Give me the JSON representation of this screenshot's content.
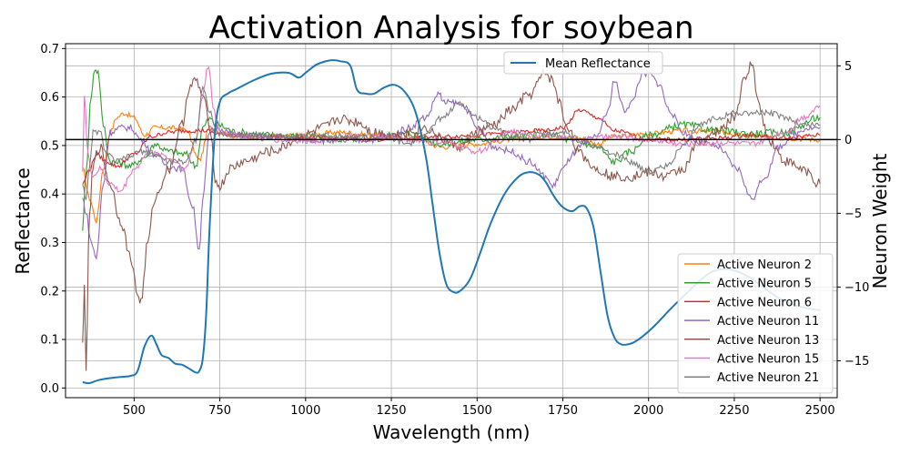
{
  "chart_data": {
    "type": "line",
    "title": "Activation Analysis for soybean",
    "xlabel": "Wavelength (nm)",
    "ylabel": "Reflectance",
    "y2label": "Neuron Weight",
    "xlim": [
      300,
      2550
    ],
    "ylim": [
      -0.02,
      0.71
    ],
    "y2lim": [
      -17.5,
      6.5
    ],
    "xticks": [
      500,
      750,
      1000,
      1250,
      1500,
      1750,
      2000,
      2250,
      2500
    ],
    "yticks": [
      0.0,
      0.1,
      0.2,
      0.3,
      0.4,
      0.5,
      0.6,
      0.7
    ],
    "y2ticks": [
      5,
      0,
      -5,
      -10,
      -15
    ],
    "grid": true,
    "zero_line_y2": 0,
    "reflectance_series": {
      "name": "Mean Reflectance",
      "color": "#1f77b4",
      "x": [
        350,
        370,
        400,
        450,
        490,
        510,
        530,
        550,
        565,
        580,
        600,
        620,
        640,
        660,
        680,
        690,
        700,
        710,
        720,
        735,
        750,
        775,
        800,
        850,
        900,
        950,
        980,
        1000,
        1030,
        1060,
        1080,
        1100,
        1130,
        1150,
        1175,
        1200,
        1230,
        1260,
        1290,
        1320,
        1350,
        1370,
        1390,
        1410,
        1430,
        1450,
        1480,
        1510,
        1540,
        1580,
        1620,
        1650,
        1680,
        1700,
        1720,
        1740,
        1760,
        1780,
        1800,
        1820,
        1840,
        1860,
        1880,
        1900,
        1920,
        1950,
        1980,
        2020,
        2060,
        2100,
        2140,
        2180,
        2220,
        2260,
        2300,
        2340,
        2380,
        2420,
        2460,
        2500
      ],
      "values": [
        0.012,
        0.01,
        0.017,
        0.022,
        0.025,
        0.035,
        0.085,
        0.108,
        0.09,
        0.068,
        0.062,
        0.05,
        0.048,
        0.04,
        0.032,
        0.035,
        0.06,
        0.15,
        0.33,
        0.52,
        0.59,
        0.608,
        0.617,
        0.635,
        0.648,
        0.65,
        0.64,
        0.65,
        0.666,
        0.674,
        0.676,
        0.674,
        0.665,
        0.615,
        0.607,
        0.607,
        0.62,
        0.625,
        0.61,
        0.57,
        0.48,
        0.38,
        0.28,
        0.215,
        0.198,
        0.2,
        0.225,
        0.28,
        0.34,
        0.4,
        0.435,
        0.445,
        0.44,
        0.425,
        0.4,
        0.38,
        0.368,
        0.365,
        0.375,
        0.37,
        0.33,
        0.24,
        0.15,
        0.105,
        0.09,
        0.092,
        0.105,
        0.13,
        0.16,
        0.188,
        0.215,
        0.238,
        0.245,
        0.24,
        0.225,
        0.205,
        0.185,
        0.172,
        0.165,
        0.16
      ]
    },
    "neuron_series": [
      {
        "name": "Active Neuron 2",
        "color": "#ff7f0e",
        "x": [
          350,
          370,
          390,
          410,
          430,
          450,
          470,
          500,
          530,
          560,
          600,
          650,
          690,
          720,
          750,
          800,
          900,
          1000,
          1100,
          1200,
          1300,
          1400,
          1500,
          1600,
          1700,
          1800,
          1850,
          1900,
          2000,
          2100,
          2200,
          2300,
          2400,
          2500
        ],
        "values": [
          -2,
          -4,
          -5.5,
          -2,
          0.5,
          1.5,
          1.8,
          1.5,
          0.3,
          0.8,
          0.8,
          0.7,
          -1.4,
          0.8,
          0.5,
          0.2,
          0.2,
          0.3,
          0.5,
          0.3,
          0.2,
          -0.5,
          -0.3,
          0.0,
          0.2,
          0.1,
          -0.3,
          0.2,
          0.4,
          0.6,
          0.5,
          0.2,
          0.1,
          0.0
        ]
      },
      {
        "name": "Active Neuron 5",
        "color": "#2ca02c",
        "x": [
          350,
          360,
          375,
          385,
          395,
          410,
          430,
          460,
          490,
          530,
          560,
          600,
          650,
          680,
          700,
          720,
          740,
          800,
          900,
          1000,
          1100,
          1200,
          1300,
          1400,
          1500,
          1600,
          1700,
          1800,
          1850,
          1900,
          1950,
          2000,
          2100,
          2200,
          2300,
          2400,
          2500
        ],
        "values": [
          -6,
          -2,
          3,
          4.8,
          4.6,
          1,
          -1.5,
          -1.6,
          -1.8,
          -1.2,
          -0.3,
          -0.8,
          -1.0,
          -1.8,
          0.8,
          1.4,
          1.0,
          0.5,
          0.3,
          0.2,
          0.0,
          0.2,
          0.4,
          -0.3,
          0.0,
          0.2,
          0.4,
          -0.2,
          -0.5,
          -1.5,
          -0.8,
          0.3,
          1.0,
          0.6,
          0.4,
          0.5,
          1.5
        ]
      },
      {
        "name": "Active Neuron 6",
        "color": "#d62728",
        "x": [
          350,
          370,
          390,
          420,
          450,
          500,
          550,
          600,
          650,
          700,
          750,
          800,
          900,
          1000,
          1100,
          1200,
          1300,
          1400,
          1500,
          1600,
          1700,
          1750,
          1800,
          1850,
          1900,
          2000,
          2100,
          2200,
          2300,
          2400,
          2500
        ],
        "values": [
          -3,
          -2,
          -1,
          -1.5,
          -1.8,
          -1,
          0.2,
          0.5,
          0.6,
          0.6,
          0.4,
          0.3,
          0.2,
          0.1,
          0.1,
          0.0,
          0.1,
          0.2,
          0.3,
          0.5,
          0.6,
          0.8,
          2.0,
          1.5,
          0.6,
          0.0,
          0.0,
          0.1,
          0.3,
          0.1,
          0.3
        ]
      },
      {
        "name": "Active Neuron 11",
        "color": "#9467bd",
        "x": [
          350,
          360,
          375,
          390,
          410,
          430,
          460,
          490,
          520,
          560,
          600,
          640,
          670,
          690,
          700,
          720,
          740,
          800,
          900,
          1000,
          1100,
          1200,
          1250,
          1300,
          1350,
          1390,
          1400,
          1430,
          1460,
          1500,
          1550,
          1600,
          1650,
          1700,
          1720,
          1750,
          1780,
          1800,
          1830,
          1850,
          1880,
          1900,
          1930,
          1950,
          1980,
          2000,
          2030,
          2060,
          2100,
          2150,
          2200,
          2260,
          2300,
          2340,
          2380,
          2420,
          2460,
          2500
        ],
        "values": [
          -4,
          -5,
          -7,
          -8,
          -3,
          0.5,
          0.8,
          0.8,
          0.0,
          -1.0,
          -1.8,
          -2.0,
          -4.5,
          -7.5,
          -4.0,
          0.5,
          0.8,
          0.3,
          0.2,
          0.0,
          -0.1,
          0.0,
          0.3,
          0.8,
          1.5,
          3.2,
          2.5,
          2.5,
          2.3,
          0.8,
          -0.5,
          -0.8,
          -1.5,
          -2.5,
          -3.2,
          -2.0,
          -1.0,
          -0.5,
          0.0,
          0.3,
          1.8,
          4.0,
          2.0,
          2.5,
          4.3,
          4.5,
          3.8,
          2.0,
          0.5,
          -0.2,
          -0.5,
          -2.0,
          -4.0,
          -2.5,
          -0.5,
          0.3,
          0.8,
          0.8
        ]
      },
      {
        "name": "Active Neuron 13",
        "color": "#8c564b",
        "x": [
          350,
          355,
          360,
          370,
          380,
          390,
          400,
          430,
          460,
          490,
          510,
          520,
          540,
          560,
          600,
          640,
          660,
          680,
          700,
          720,
          740,
          750,
          780,
          820,
          900,
          1000,
          1050,
          1100,
          1150,
          1200,
          1250,
          1300,
          1350,
          1400,
          1450,
          1500,
          1550,
          1600,
          1650,
          1700,
          1720,
          1740,
          1760,
          1800,
          1850,
          1900,
          1950,
          2000,
          2050,
          2100,
          2150,
          2200,
          2250,
          2280,
          2300,
          2320,
          2350,
          2400,
          2450,
          2500
        ],
        "values": [
          -14,
          -10,
          -15.5,
          -5,
          -2,
          -1,
          -0.5,
          -3.0,
          -5.5,
          -8,
          -10.5,
          -11,
          -7.0,
          -4.0,
          -2.0,
          1.0,
          3.5,
          4.0,
          3.0,
          1.0,
          -3.0,
          -3.2,
          -2.0,
          -1.5,
          -0.8,
          0.3,
          0.8,
          1.4,
          1.2,
          0.5,
          0.3,
          0.5,
          0.8,
          0.0,
          -0.5,
          0.5,
          1.0,
          2.0,
          3.0,
          4.5,
          4.0,
          2.5,
          1.0,
          -1.0,
          -2.0,
          -2.5,
          -2.5,
          -2.2,
          -2.5,
          -2.0,
          0.0,
          0.5,
          1.5,
          4.0,
          5.3,
          2.5,
          0.0,
          -1.5,
          -2.0,
          -3.0
        ]
      },
      {
        "name": "Active Neuron 15",
        "color": "#e377c2",
        "x": [
          350,
          355,
          365,
          380,
          400,
          430,
          460,
          500,
          540,
          580,
          620,
          650,
          680,
          700,
          715,
          720,
          730,
          750,
          800,
          900,
          1000,
          1100,
          1200,
          1300,
          1400,
          1500,
          1600,
          1700,
          1800,
          1900,
          2000,
          2100,
          2200,
          2300,
          2400,
          2450,
          2500
        ],
        "values": [
          -2,
          3,
          -1,
          -2.5,
          -2.0,
          -3.0,
          -3.5,
          -2.0,
          -1.0,
          -1.0,
          -1.5,
          -2.0,
          0.0,
          3.0,
          5.0,
          4.8,
          2.0,
          0.5,
          0.3,
          0.0,
          -0.1,
          0.1,
          0.2,
          0.0,
          -0.2,
          -0.8,
          0.5,
          0.3,
          0.0,
          0.2,
          0.0,
          -0.3,
          -0.2,
          -0.3,
          0.5,
          1.5,
          2.3
        ]
      },
      {
        "name": "Active Neuron 21",
        "color": "#7f7f7f",
        "x": [
          350,
          360,
          370,
          380,
          400,
          420,
          450,
          480,
          520,
          560,
          600,
          650,
          680,
          700,
          720,
          740,
          760,
          800,
          900,
          1000,
          1100,
          1200,
          1250,
          1300,
          1350,
          1400,
          1450,
          1500,
          1550,
          1600,
          1650,
          1700,
          1750,
          1800,
          1850,
          1900,
          1950,
          2000,
          2050,
          2100,
          2150,
          2200,
          2250,
          2300,
          2350,
          2400,
          2450,
          2500
        ],
        "values": [
          -3,
          -4,
          -2,
          0.5,
          0.5,
          -1.0,
          -1.5,
          -1.2,
          -0.8,
          -1.0,
          -1.5,
          -1.5,
          0.0,
          3.5,
          2.0,
          0.5,
          0.3,
          0.3,
          0.2,
          0.3,
          0.3,
          0.1,
          0.0,
          -0.3,
          0.5,
          1.5,
          2.5,
          1.5,
          0.8,
          0.2,
          0.0,
          0.3,
          0.5,
          0.0,
          -0.5,
          -1.0,
          -1.5,
          -2.2,
          -1.8,
          -0.5,
          1.0,
          1.5,
          1.8,
          1.8,
          1.8,
          1.5,
          1.0,
          1.0
        ]
      }
    ],
    "legends": {
      "upper": {
        "location": "top-center",
        "entries": [
          "Mean Reflectance"
        ]
      },
      "lower": {
        "location": "bottom-right",
        "entries": [
          "Active Neuron 2",
          "Active Neuron 5",
          "Active Neuron 6",
          "Active Neuron 11",
          "Active Neuron 13",
          "Active Neuron 15",
          "Active Neuron 21"
        ]
      }
    }
  }
}
